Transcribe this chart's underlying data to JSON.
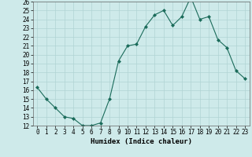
{
  "x": [
    0,
    1,
    2,
    3,
    4,
    5,
    6,
    7,
    8,
    9,
    10,
    11,
    12,
    13,
    14,
    15,
    16,
    17,
    18,
    19,
    20,
    21,
    22,
    23
  ],
  "y": [
    16.3,
    15.0,
    14.0,
    13.0,
    12.8,
    12.0,
    12.0,
    12.3,
    15.0,
    19.3,
    21.0,
    21.2,
    23.2,
    24.5,
    25.0,
    23.3,
    24.3,
    26.5,
    24.0,
    24.3,
    21.7,
    20.8,
    18.2,
    17.3
  ],
  "xlabel": "Humidex (Indice chaleur)",
  "ylim": [
    12,
    26
  ],
  "xlim": [
    -0.5,
    23.5
  ],
  "yticks": [
    12,
    13,
    14,
    15,
    16,
    17,
    18,
    19,
    20,
    21,
    22,
    23,
    24,
    25,
    26
  ],
  "xticks": [
    0,
    1,
    2,
    3,
    4,
    5,
    6,
    7,
    8,
    9,
    10,
    11,
    12,
    13,
    14,
    15,
    16,
    17,
    18,
    19,
    20,
    21,
    22,
    23
  ],
  "line_color": "#1a6b5a",
  "marker": "D",
  "marker_size": 2.0,
  "bg_color": "#ceeaea",
  "grid_color": "#b0d4d4",
  "tick_fontsize": 5.5,
  "xlabel_fontsize": 6.5
}
